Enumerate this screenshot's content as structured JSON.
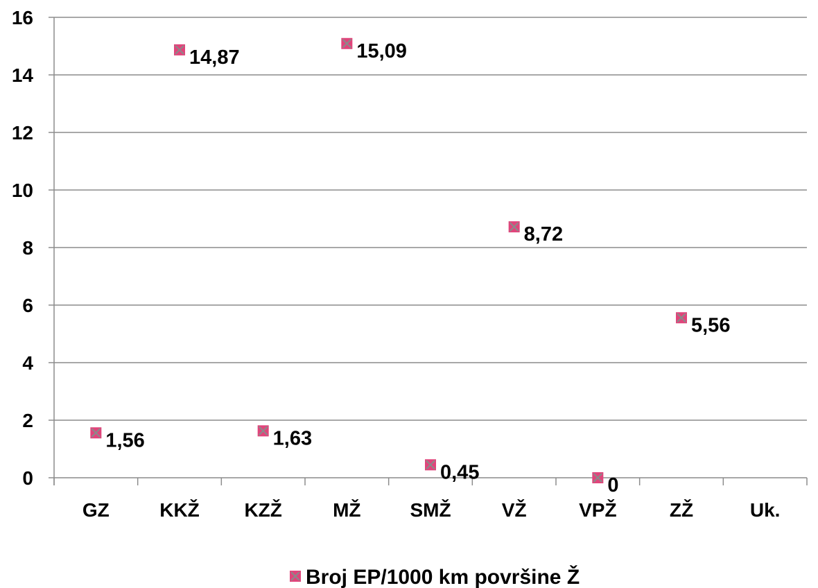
{
  "chart_data": {
    "type": "scatter",
    "categories": [
      "GZ",
      "KKŽ",
      "KZŽ",
      "MŽ",
      "SMŽ",
      "VŽ",
      "VPŽ",
      "ZŽ",
      "Uk."
    ],
    "series": [
      {
        "name": "Broj EP/1000 km površine Ž",
        "values": [
          1.56,
          14.87,
          1.63,
          15.09,
          0.45,
          8.72,
          0,
          5.56,
          null
        ],
        "labels": [
          "1,56",
          "14,87",
          "1,63",
          "15,09",
          "0,45",
          "8,72",
          "0",
          "5,56",
          ""
        ],
        "color": "#e0457b",
        "marker_cross_color": "#8a8a8a"
      }
    ],
    "ylim": [
      0,
      16
    ],
    "yticks": [
      0,
      2,
      4,
      6,
      8,
      10,
      12,
      14,
      16
    ],
    "grid": true,
    "gridline_color": "#8c8c8c",
    "legend_position": "bottom"
  }
}
